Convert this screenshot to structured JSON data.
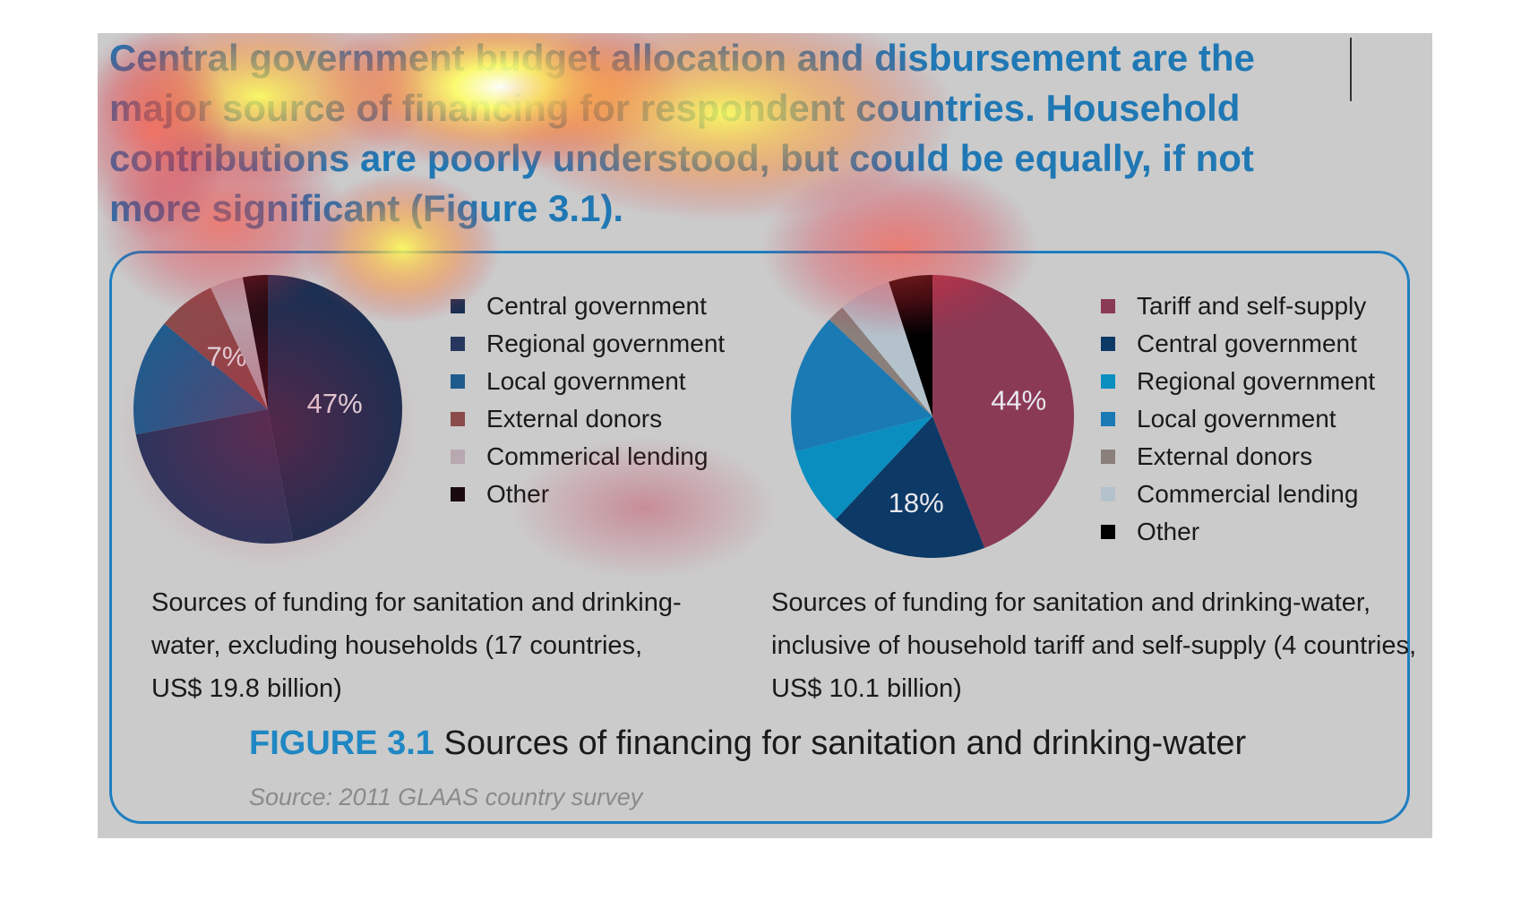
{
  "headline": "Central government budget allocation and disbursement are the major source of financing for respondent countries. Household contributions are poorly understood, but could be equally, if not more significant (Figure 3.1).",
  "figure": {
    "number": "FIGURE 3.1",
    "title": "Sources of financing for sanitation and drinking-water",
    "source": "Source: 2011 GLAAS country survey"
  },
  "colors": {
    "background": "#cbcbcb",
    "accent_blue": "#1f87c4",
    "heatmap": [
      "#ffff55",
      "#ff6a2a",
      "#e0283a"
    ]
  },
  "chart_data": [
    {
      "type": "pie",
      "caption": "Sources of funding for sanitation and drinking-water, excluding households (17 countries, US$ 19.8 billion)",
      "labels": [
        "Central government",
        "Regional government",
        "Local government",
        "External donors",
        "Commerical lending",
        "Other"
      ],
      "values": [
        47,
        25,
        14,
        7,
        4,
        3
      ],
      "colors": [
        "#1a2f52",
        "#26365e",
        "#1f5c8e",
        "#8b4b4b",
        "#b8a8b0",
        "#1a0a10"
      ],
      "data_labels": [
        "47%",
        "",
        "",
        "7%",
        "",
        ""
      ],
      "legend": "right"
    },
    {
      "type": "pie",
      "caption": "Sources of funding for sanitation and drinking-water, inclusive of household tariff and self-supply (4 countries, US$ 10.1 billion)",
      "labels": [
        "Tariff and self-supply",
        "Central government",
        "Regional government",
        "Local government",
        "External donors",
        "Commercial lending",
        "Other"
      ],
      "values": [
        44,
        18,
        9,
        16,
        2,
        6,
        5
      ],
      "colors": [
        "#8b3a55",
        "#0d3966",
        "#0a8ec0",
        "#1a7ab4",
        "#8a7f7b",
        "#b4c2cc",
        "#000000"
      ],
      "data_labels": [
        "44%",
        "18%",
        "",
        "",
        "",
        "",
        ""
      ],
      "legend": "right"
    }
  ]
}
